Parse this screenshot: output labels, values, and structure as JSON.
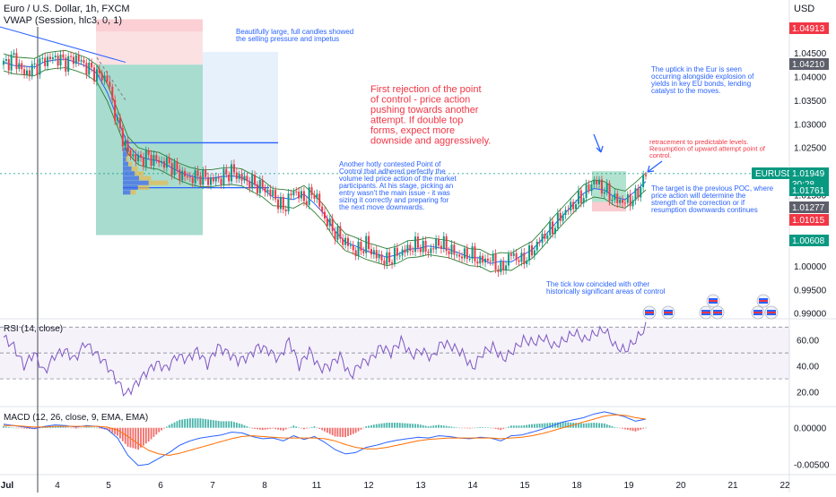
{
  "header": {
    "title": "Euro / U.S. Dollar, 1h, FXCM",
    "indicator": "VWAP (Session, hlc3, 0, 1)",
    "currency": "USD"
  },
  "chart_data": [
    {
      "type": "candlestick",
      "title": "Euro / U.S. Dollar, 1h, FXCM",
      "ylim": [
        0.989,
        1.052
      ],
      "y_ticks": [
        "1.05000",
        "1.04500",
        "1.04000",
        "1.03500",
        "1.03000",
        "1.02500",
        "1.02000",
        "1.01500",
        "1.01000",
        "1.00500",
        "1.00000",
        "0.99500",
        "0.99000"
      ],
      "y_tick_values": [
        1.05,
        1.045,
        1.04,
        1.035,
        1.03,
        1.025,
        1.02,
        1.015,
        1.01,
        1.005,
        1.0,
        0.995,
        0.99
      ],
      "x_ticks": [
        "Jul",
        "4",
        "5",
        "6",
        "7",
        "8",
        "11",
        "12",
        "13",
        "14",
        "15",
        "18",
        "19",
        "20",
        "21",
        "22"
      ],
      "approx_close_path": [
        1.0425,
        1.044,
        1.0405,
        1.042,
        1.0435,
        1.044,
        1.043,
        1.044,
        1.042,
        1.0405,
        1.0395,
        1.03,
        1.024,
        1.0225,
        1.023,
        1.022,
        1.0215,
        1.0195,
        1.0185,
        1.019,
        1.018,
        1.0185,
        1.02,
        1.0185,
        1.0175,
        1.0165,
        1.015,
        1.012,
        1.016,
        1.014,
        1.0155,
        1.01,
        1.007,
        1.005,
        1.003,
        1.0045,
        1.002,
        1.001,
        1.0025,
        1.0035,
        1.0045,
        1.003,
        1.005,
        1.0035,
        1.002,
        1.0025,
        1.001,
        1.0015,
        0.999,
        1.0025,
        1.001,
        1.003,
        1.006,
        1.008,
        1.011,
        1.013,
        1.015,
        1.018,
        1.016,
        1.014,
        1.0135,
        1.0145,
        1.0195
      ],
      "last_price": 1.01949,
      "price_labels": [
        {
          "text": "1.04913",
          "value": 1.04913,
          "color": "#f23645"
        },
        {
          "text": "1.04210",
          "value": 1.0421,
          "color": "#5d606b"
        },
        {
          "text": "EURUSD",
          "value": 1.01949,
          "color": "#089981"
        },
        {
          "text": "1.01949",
          "value": 1.01949,
          "color": "#089981"
        },
        {
          "text": "30:28",
          "value": 1.01949,
          "color": "#089981"
        },
        {
          "text": "1.01761",
          "value": 1.01761,
          "color": "#089981"
        },
        {
          "text": "1.01277",
          "value": 1.01277,
          "color": "#5d606b"
        },
        {
          "text": "1.01015",
          "value": 1.01015,
          "color": "#f23645"
        },
        {
          "text": "1.00608",
          "value": 1.00608,
          "color": "#089981"
        }
      ],
      "annotations": [
        {
          "text": [
            "Beautifully large, full candles showed",
            "the selling pressure and impetus"
          ],
          "color": "#2962ff"
        },
        {
          "text": [
            "First rejection of the point",
            "of control - price action",
            "pushing towards another",
            "attempt. If double top",
            "forms, expect more",
            "downside and aggressively."
          ],
          "color": "#f23645"
        },
        {
          "text": [
            "Another hotly contested Point of",
            "Control that adhered perfectly the",
            "volume led price action of the market",
            "participants. At his stage, picking an",
            "entry wasn't the main issue - it was",
            "sizing it correctly and preparing for",
            "the next move downwards."
          ],
          "color": "#2962ff"
        },
        {
          "text": [
            "The uptick in the Eur is seen",
            "occurring alongside explosion of",
            "yields in key EU bonds, lending",
            "catalyst to the moves."
          ],
          "color": "#2962ff"
        },
        {
          "text": [
            "retracement to predictable levels.",
            "Resumption of upward attempt point of",
            "control."
          ],
          "color": "#f23645"
        },
        {
          "text": [
            "The target is the previous POC, where",
            "price action will determine the",
            "strength of the correction or if",
            "resumption downwards continues"
          ],
          "color": "#2962ff"
        },
        {
          "text": [
            "The tick low coincided with other",
            "historically significant areas of control"
          ],
          "color": "#2962ff"
        }
      ]
    },
    {
      "type": "line",
      "title": "RSI (14, close)",
      "ylim": [
        10,
        75
      ],
      "y_ticks": [
        "60.00",
        "40.00",
        "20.00"
      ],
      "y_tick_values": [
        60,
        40,
        20
      ],
      "bands": [
        30,
        70
      ],
      "values": [
        62,
        55,
        40,
        50,
        35,
        48,
        52,
        45,
        58,
        50,
        42,
        30,
        18,
        26,
        35,
        42,
        38,
        48,
        45,
        52,
        41,
        55,
        50,
        44,
        47,
        55,
        52,
        45,
        60,
        40,
        52,
        38,
        40,
        48,
        32,
        42,
        45,
        55,
        50,
        60,
        48,
        52,
        46,
        58,
        55,
        50,
        38,
        50,
        55,
        45,
        52,
        60,
        58,
        62,
        55,
        60,
        66,
        60,
        65,
        68,
        55,
        52,
        60,
        70
      ]
    },
    {
      "type": "macd",
      "title": "MACD (12, 26, close, 9, EMA, EMA)",
      "ylim": [
        -0.0062,
        0.0028
      ],
      "y_ticks": [
        "0.00000",
        "-0.00500"
      ],
      "y_tick_values": [
        0,
        -0.005
      ],
      "macd": [
        0.0005,
        0.0003,
        0.0001,
        -0.0001,
        0.0002,
        0.0004,
        0.0003,
        0.0001,
        0.0003,
        0.0002,
        -0.0002,
        -0.0014,
        -0.0038,
        -0.0052,
        -0.005,
        -0.0042,
        -0.0034,
        -0.0024,
        -0.0018,
        -0.0014,
        -0.0012,
        -0.001,
        -0.0006,
        -0.0007,
        -0.0012,
        -0.0015,
        -0.0014,
        -0.0018,
        -0.0011,
        -0.0016,
        -0.0012,
        -0.002,
        -0.003,
        -0.0036,
        -0.0034,
        -0.0027,
        -0.0024,
        -0.002,
        -0.0017,
        -0.0015,
        -0.0013,
        -0.0014,
        -0.0011,
        -0.0012,
        -0.0014,
        -0.0015,
        -0.0013,
        -0.0014,
        -0.0018,
        -0.0011,
        -0.001,
        -0.0006,
        -0.0002,
        0.0003,
        0.0008,
        0.0011,
        0.0014,
        0.0019,
        0.0022,
        0.0019,
        0.0015,
        0.0009,
        0.0012
      ],
      "signal": [
        0.0003,
        0.0003,
        0.0002,
        0.0001,
        0.0001,
        0.0002,
        0.0002,
        0.0002,
        0.0002,
        0.0002,
        0.0001,
        -0.0003,
        -0.0012,
        -0.0022,
        -0.0031,
        -0.0036,
        -0.0038,
        -0.0035,
        -0.0031,
        -0.0027,
        -0.0023,
        -0.0019,
        -0.0015,
        -0.0012,
        -0.0011,
        -0.0012,
        -0.0013,
        -0.0014,
        -0.0014,
        -0.0014,
        -0.0014,
        -0.0015,
        -0.0018,
        -0.0023,
        -0.0027,
        -0.0029,
        -0.0029,
        -0.0027,
        -0.0024,
        -0.0021,
        -0.0018,
        -0.0016,
        -0.0015,
        -0.0014,
        -0.0014,
        -0.0014,
        -0.0014,
        -0.0014,
        -0.0015,
        -0.0014,
        -0.0013,
        -0.0011,
        -0.0008,
        -0.0004,
        0.0,
        0.0004,
        0.0008,
        0.0012,
        0.0016,
        0.0018,
        0.0017,
        0.0014,
        0.0012
      ]
    }
  ]
}
